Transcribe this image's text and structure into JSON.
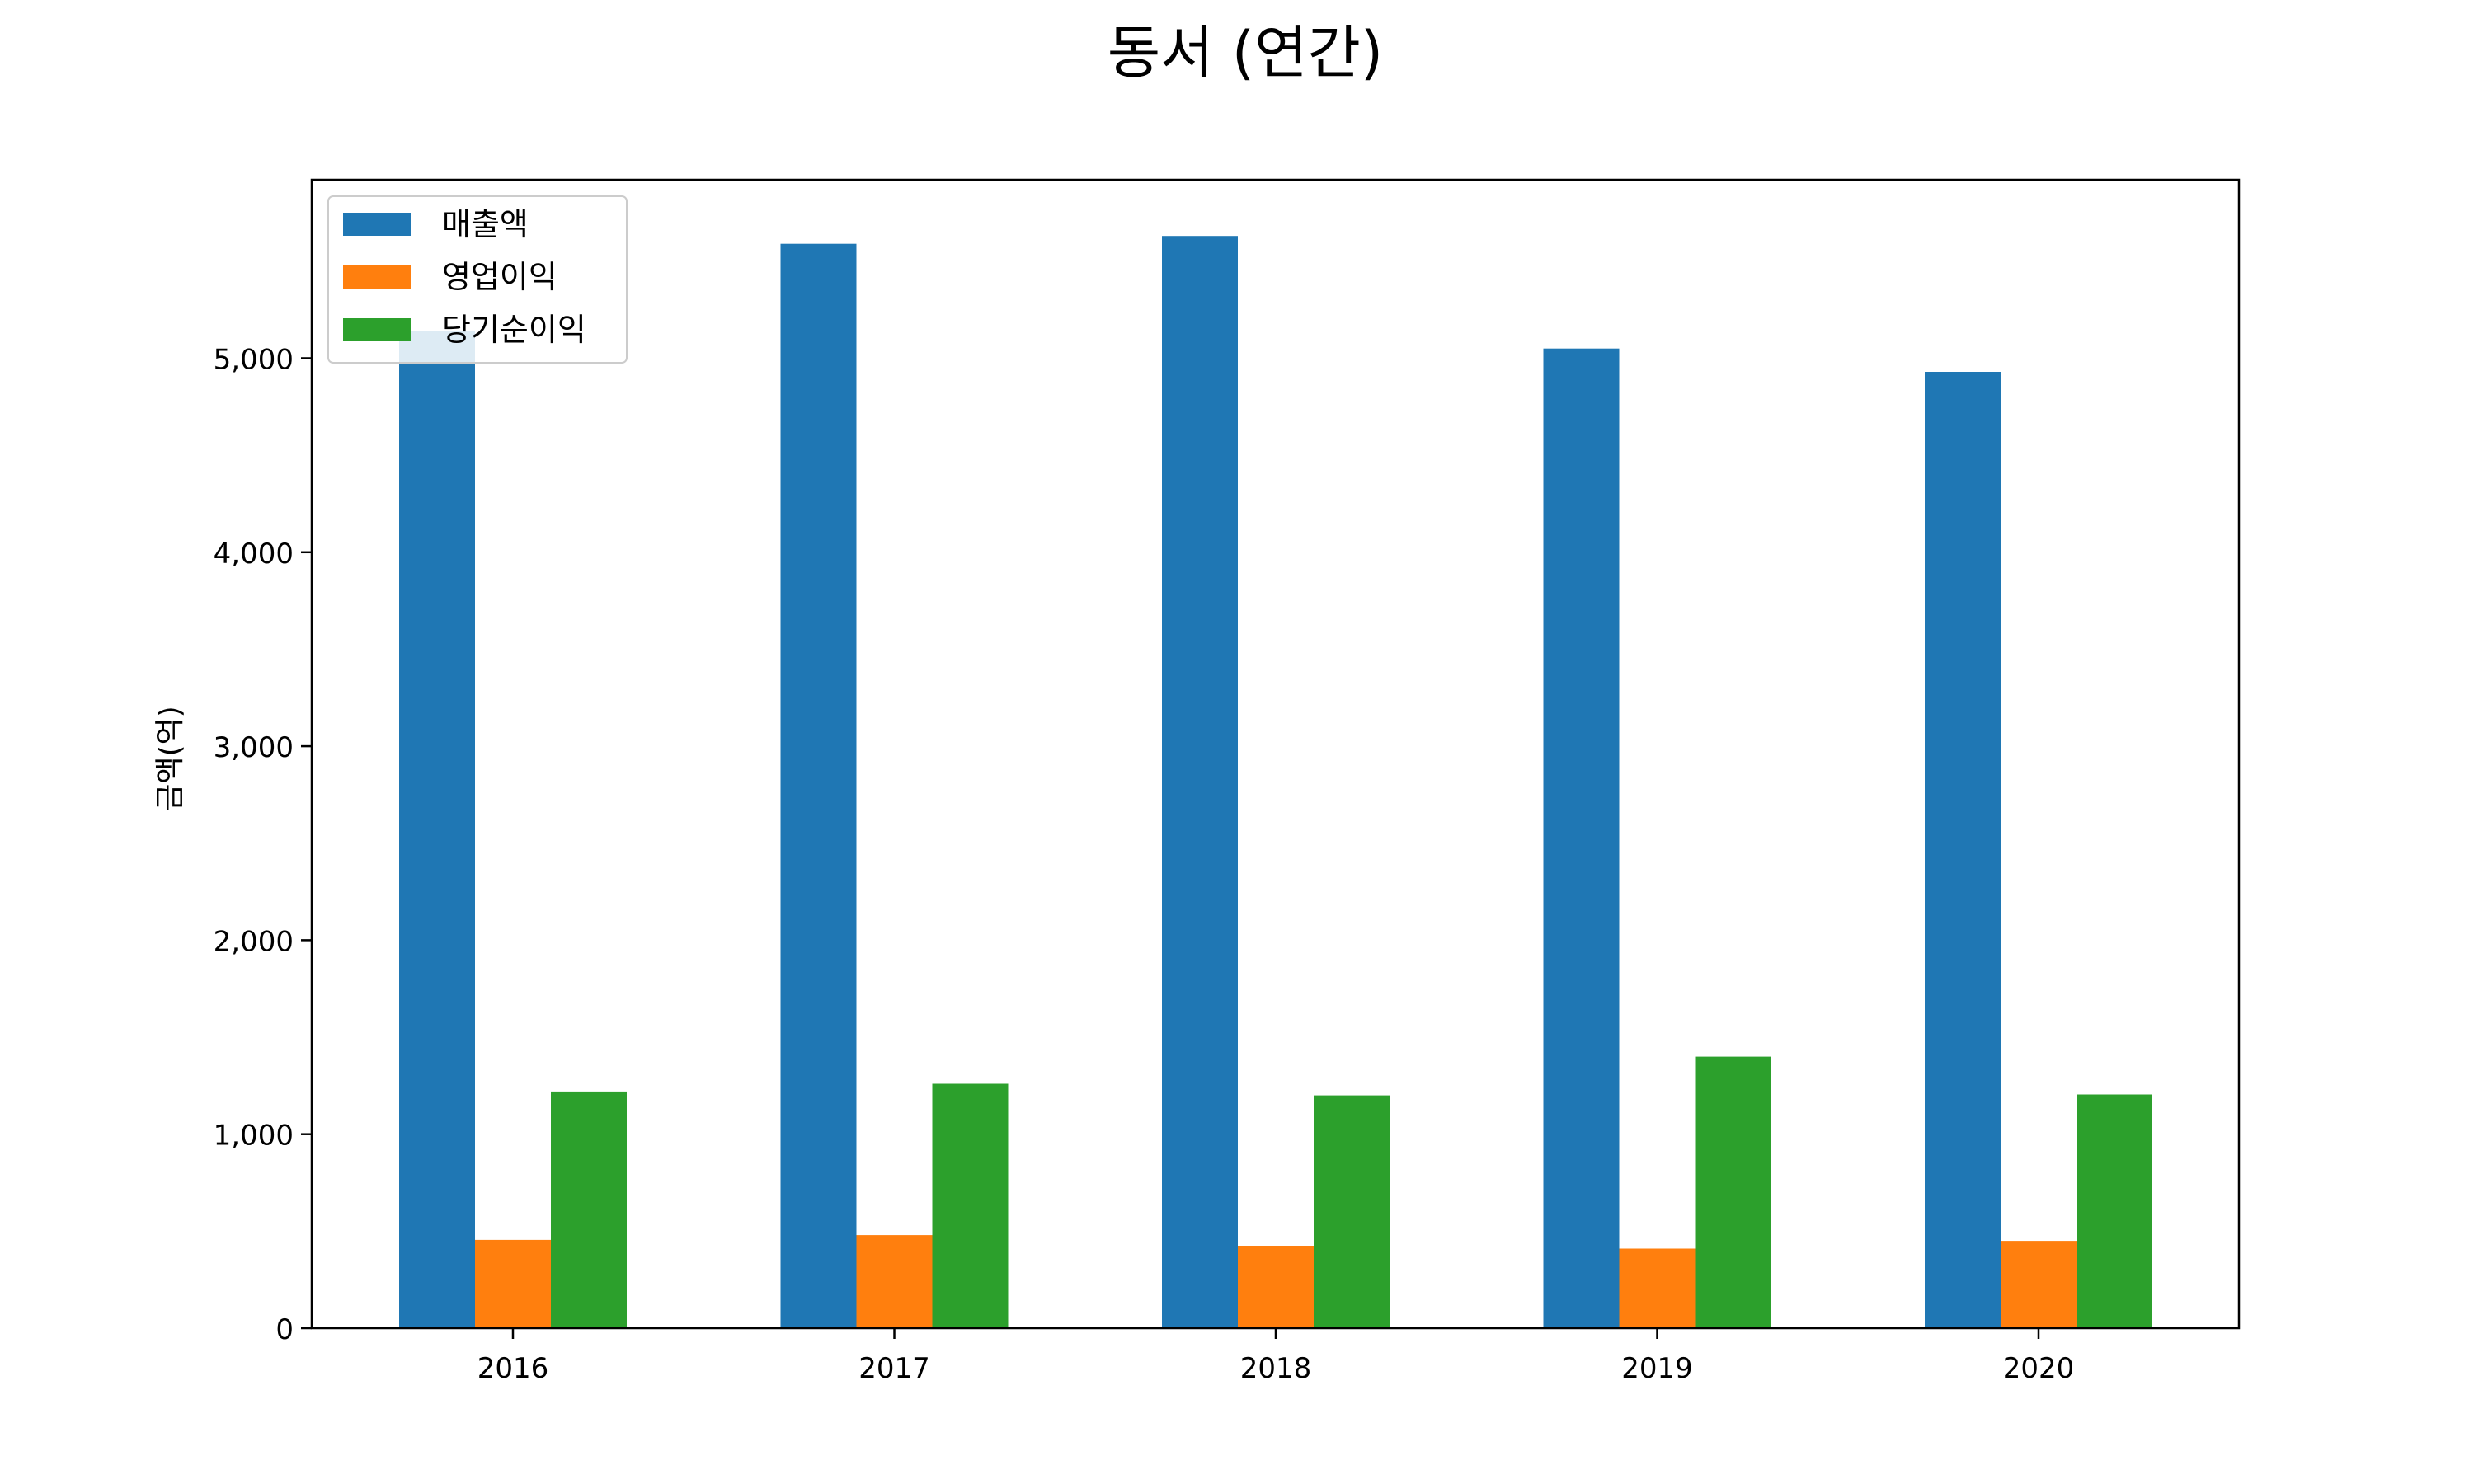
{
  "chart_data": {
    "type": "bar",
    "title": "동서 (연간)",
    "xlabel": "",
    "ylabel": "금액(억)",
    "categories": [
      "2016",
      "2017",
      "2018",
      "2019",
      "2020"
    ],
    "series": [
      {
        "name": "매출액",
        "color": "#1f77b4",
        "values": [
          5140,
          5590,
          5630,
          5050,
          4930
        ]
      },
      {
        "name": "영업이익",
        "color": "#ff7f0e",
        "values": [
          455,
          480,
          425,
          410,
          450
        ]
      },
      {
        "name": "당기순이익",
        "color": "#2ca02c",
        "values": [
          1220,
          1260,
          1200,
          1400,
          1205
        ]
      }
    ],
    "ylim": [
      0,
      5920
    ],
    "yticks": [
      0,
      1000,
      2000,
      3000,
      4000,
      5000
    ],
    "ytick_labels": [
      "0",
      "1,000",
      "2,000",
      "3,000",
      "4,000",
      "5,000"
    ],
    "grid": false,
    "legend_position": "top-left"
  }
}
